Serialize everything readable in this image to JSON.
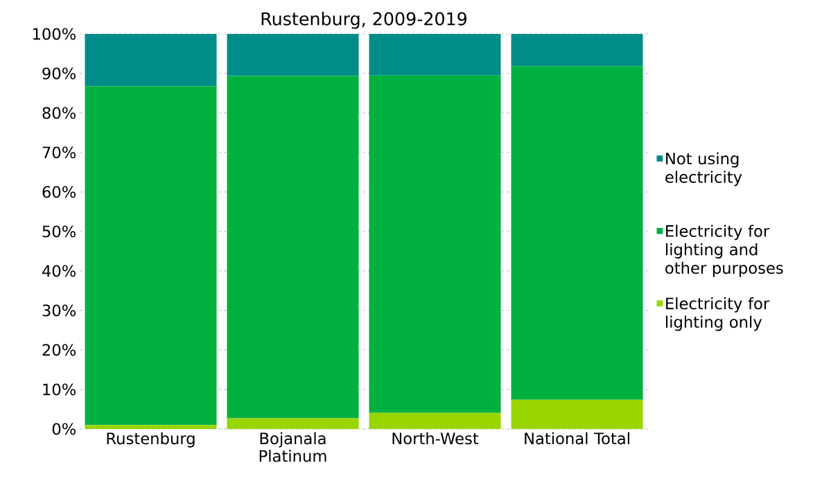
{
  "chart_data": {
    "type": "bar",
    "stacked": true,
    "title": "Rustenburg, 2009-2019",
    "categories": [
      "Rustenburg",
      "Bojanala Platinum",
      "North-West",
      "National Total"
    ],
    "series": [
      {
        "name": "Electricity for lighting only",
        "color": "#99d600",
        "values": [
          1.0,
          2.7,
          4.1,
          7.4
        ]
      },
      {
        "name": "Electricity for lighting and other purposes",
        "color": "#00b140",
        "values": [
          85.8,
          86.7,
          85.4,
          84.5
        ]
      },
      {
        "name": "Not using electricity",
        "color": "#008c88",
        "values": [
          13.2,
          10.6,
          10.5,
          8.1
        ]
      }
    ],
    "ylim": [
      0,
      100
    ],
    "yticks": [
      {
        "value": 0,
        "label": "0%"
      },
      {
        "value": 10,
        "label": "10%"
      },
      {
        "value": 20,
        "label": "20%"
      },
      {
        "value": 30,
        "label": "30%"
      },
      {
        "value": 40,
        "label": "40%"
      },
      {
        "value": 50,
        "label": "50%"
      },
      {
        "value": 60,
        "label": "60%"
      },
      {
        "value": 70,
        "label": "70%"
      },
      {
        "value": 80,
        "label": "80%"
      },
      {
        "value": 90,
        "label": "90%"
      },
      {
        "value": 100,
        "label": "100%"
      }
    ],
    "grid": "y",
    "legend": "right"
  }
}
